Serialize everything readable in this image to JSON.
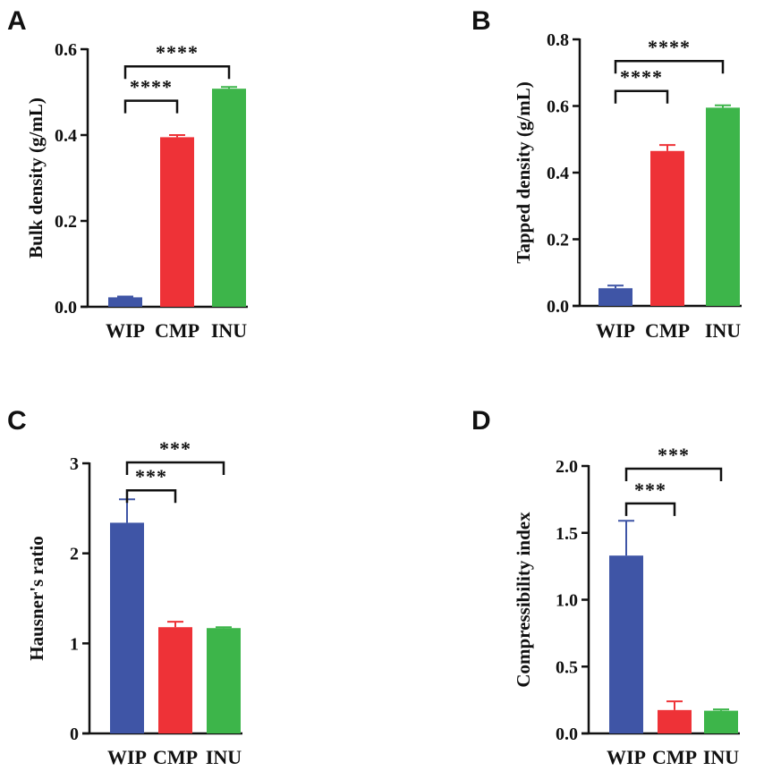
{
  "figure": {
    "panels": [
      {
        "letter": "A",
        "ylabel": "Bulk density (g/mL)",
        "yticks": [
          "0.0",
          "0.2",
          "0.4",
          "0.6"
        ],
        "ylim": [
          0,
          0.6
        ],
        "categories": [
          "WIP",
          "CMP",
          "INU"
        ],
        "values": [
          0.022,
          0.395,
          0.508
        ],
        "errors": [
          0.002,
          0.005,
          0.004
        ],
        "colors": [
          "#3F55A6",
          "#EE3237",
          "#3DB54A"
        ],
        "sig": [
          {
            "from": 0,
            "to": 2,
            "label": "****",
            "y": 0.56
          },
          {
            "from": 0,
            "to": 1,
            "label": "****",
            "y": 0.48
          }
        ]
      },
      {
        "letter": "B",
        "ylabel": "Tapped density (g/mL)",
        "yticks": [
          "0.0",
          "0.2",
          "0.4",
          "0.6",
          "0.8"
        ],
        "ylim": [
          0,
          0.8
        ],
        "categories": [
          "WIP",
          "CMP",
          "INU"
        ],
        "values": [
          0.053,
          0.465,
          0.595
        ],
        "errors": [
          0.008,
          0.018,
          0.007
        ],
        "colors": [
          "#3F55A6",
          "#EE3237",
          "#3DB54A"
        ],
        "sig": [
          {
            "from": 0,
            "to": 2,
            "label": "****",
            "y": 0.735
          },
          {
            "from": 0,
            "to": 1,
            "label": "****",
            "y": 0.645
          }
        ]
      },
      {
        "letter": "C",
        "ylabel": "Hausner's ratio",
        "yticks": [
          "0",
          "1",
          "2",
          "3"
        ],
        "ylim": [
          0,
          3
        ],
        "categories": [
          "WIP",
          "CMP",
          "INU"
        ],
        "values": [
          2.34,
          1.18,
          1.17
        ],
        "errors": [
          0.26,
          0.06,
          0.01
        ],
        "colors": [
          "#3F55A6",
          "#EE3237",
          "#3DB54A"
        ],
        "sig": [
          {
            "from": 0,
            "to": 2,
            "label": "***",
            "y": 3.01
          },
          {
            "from": 0,
            "to": 1,
            "label": "***",
            "y": 2.7
          }
        ]
      },
      {
        "letter": "D",
        "ylabel": "Compressibility index",
        "yticks": [
          "0.0",
          "0.5",
          "1.0",
          "1.5",
          "2.0"
        ],
        "ylim": [
          0,
          2.0
        ],
        "categories": [
          "WIP",
          "CMP",
          "INU"
        ],
        "values": [
          1.33,
          0.175,
          0.17
        ],
        "errors": [
          0.26,
          0.065,
          0.01
        ],
        "colors": [
          "#3F55A6",
          "#EE3237",
          "#3DB54A"
        ],
        "sig": [
          {
            "from": 0,
            "to": 2,
            "label": "***",
            "y": 1.98
          },
          {
            "from": 0,
            "to": 1,
            "label": "***",
            "y": 1.72
          }
        ]
      }
    ]
  },
  "chart_data": [
    {
      "type": "bar",
      "panel": "A",
      "title": "",
      "xlabel": "",
      "ylabel": "Bulk density (g/mL)",
      "categories": [
        "WIP",
        "CMP",
        "INU"
      ],
      "values": [
        0.022,
        0.395,
        0.508
      ],
      "ylim": [
        0,
        0.6
      ]
    },
    {
      "type": "bar",
      "panel": "B",
      "title": "",
      "xlabel": "",
      "ylabel": "Tapped density (g/mL)",
      "categories": [
        "WIP",
        "CMP",
        "INU"
      ],
      "values": [
        0.053,
        0.465,
        0.595
      ],
      "ylim": [
        0,
        0.8
      ]
    },
    {
      "type": "bar",
      "panel": "C",
      "title": "",
      "xlabel": "",
      "ylabel": "Hausner's ratio",
      "categories": [
        "WIP",
        "CMP",
        "INU"
      ],
      "values": [
        2.34,
        1.18,
        1.17
      ],
      "ylim": [
        0,
        3
      ]
    },
    {
      "type": "bar",
      "panel": "D",
      "title": "",
      "xlabel": "",
      "ylabel": "Compressibility index",
      "categories": [
        "WIP",
        "CMP",
        "INU"
      ],
      "values": [
        1.33,
        0.175,
        0.17
      ],
      "ylim": [
        0,
        2.0
      ]
    }
  ]
}
